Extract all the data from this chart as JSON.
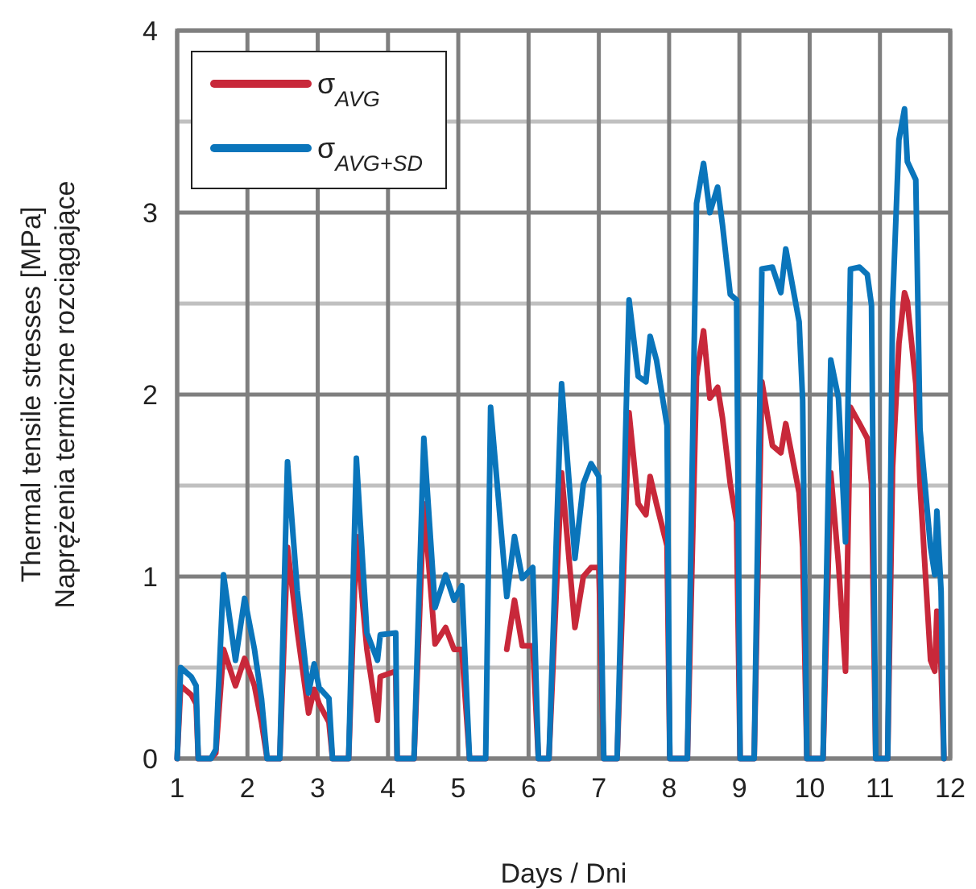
{
  "chart_data": {
    "type": "line",
    "xlabel": "Days / Dni",
    "ylabel": "Thermal tensile stresses [MPa]\nNaprężenia termiczne rozciągające",
    "x": [
      1.0,
      1.05,
      1.2,
      1.27,
      1.3,
      1.48,
      1.55,
      1.66,
      1.83,
      1.96,
      2.1,
      2.2,
      2.28,
      2.46,
      2.57,
      2.71,
      2.87,
      2.95,
      3.02,
      3.16,
      3.21,
      3.44,
      3.55,
      3.7,
      3.85,
      3.89,
      4.11,
      4.13,
      4.37,
      4.51,
      4.67,
      4.82,
      4.94,
      5.05,
      5.16,
      5.39,
      5.46,
      5.69,
      5.8,
      5.91,
      6.06,
      6.14,
      6.29,
      6.47,
      6.66,
      6.78,
      6.89,
      7.0,
      7.07,
      7.26,
      7.43,
      7.56,
      7.67,
      7.73,
      7.82,
      7.97,
      8.01,
      8.26,
      8.39,
      8.49,
      8.58,
      8.69,
      8.76,
      8.87,
      8.96,
      9.01,
      9.21,
      9.32,
      9.47,
      9.59,
      9.66,
      9.85,
      9.9,
      9.96,
      10.19,
      10.3,
      10.41,
      10.51,
      10.58,
      10.71,
      10.82,
      10.88,
      10.94,
      11.11,
      11.18,
      11.27,
      11.35,
      11.39,
      11.51,
      11.57,
      11.72,
      11.78,
      11.81,
      11.87,
      11.91
    ],
    "series": [
      {
        "name": "σ$_{AVG}$",
        "color": "#c8283a",
        "values": [
          0,
          0.4,
          0.35,
          0.3,
          0,
          0,
          0.03,
          0.6,
          0.4,
          0.55,
          0.4,
          0.2,
          0,
          0,
          1.16,
          0.7,
          0.25,
          0.38,
          0.3,
          0.2,
          0,
          0,
          1.22,
          0.6,
          0.21,
          0.45,
          0.48,
          0,
          0,
          1.4,
          0.63,
          0.72,
          0.6,
          0.6,
          0,
          0,
          null,
          0.6,
          0.87,
          0.62,
          0.62,
          0,
          0,
          1.57,
          0.72,
          1.0,
          1.05,
          1.05,
          0,
          0,
          1.9,
          1.4,
          1.34,
          1.55,
          1.4,
          1.17,
          0,
          0,
          2.1,
          2.35,
          1.98,
          2.04,
          1.87,
          1.51,
          1.3,
          0,
          0,
          2.07,
          1.72,
          1.68,
          1.84,
          1.46,
          1.16,
          0,
          0,
          1.57,
          1.07,
          0.48,
          1.93,
          1.84,
          1.76,
          1.51,
          0,
          0,
          1.6,
          2.28,
          2.56,
          2.51,
          2.06,
          1.51,
          0.54,
          0.48,
          0.81,
          0.5,
          0
        ]
      },
      {
        "name": "σ$_{AVG+SD}$",
        "color": "#0a75bb",
        "values": [
          0,
          0.5,
          0.45,
          0.4,
          0,
          0,
          0.05,
          1.01,
          0.54,
          0.88,
          0.6,
          0.33,
          0,
          0,
          1.63,
          0.92,
          0.36,
          0.52,
          0.39,
          0.33,
          0,
          0,
          1.65,
          0.69,
          0.54,
          0.68,
          0.69,
          0,
          0,
          1.76,
          0.83,
          1.01,
          0.87,
          0.95,
          0,
          0,
          1.93,
          0.89,
          1.22,
          0.99,
          1.05,
          0,
          0,
          2.06,
          1.1,
          1.51,
          1.62,
          1.55,
          0,
          0,
          2.52,
          2.1,
          2.07,
          2.32,
          2.19,
          1.83,
          0,
          0,
          3.05,
          3.27,
          3.0,
          3.14,
          2.93,
          2.55,
          2.52,
          0,
          0,
          2.69,
          2.7,
          2.56,
          2.8,
          2.4,
          1.97,
          0,
          0,
          2.19,
          1.98,
          1.19,
          2.69,
          2.7,
          2.66,
          2.49,
          0,
          0,
          2.49,
          3.4,
          3.57,
          3.28,
          3.18,
          1.81,
          1.16,
          1.01,
          1.36,
          0.92,
          0
        ]
      }
    ],
    "xlim": [
      1,
      12
    ],
    "xticks": [
      1,
      2,
      3,
      4,
      5,
      6,
      7,
      8,
      9,
      10,
      11,
      12
    ],
    "ylim": [
      0,
      4
    ],
    "yticks": [
      0,
      {
        "value": 0.5,
        "label": null
      },
      1,
      {
        "value": 1.5,
        "label": null
      },
      2,
      {
        "value": 2.5,
        "label": null
      },
      3,
      {
        "value": 3.5,
        "label": null
      },
      4
    ],
    "grid": true,
    "legend": "top left",
    "marker": "none",
    "line_style": "solid"
  }
}
